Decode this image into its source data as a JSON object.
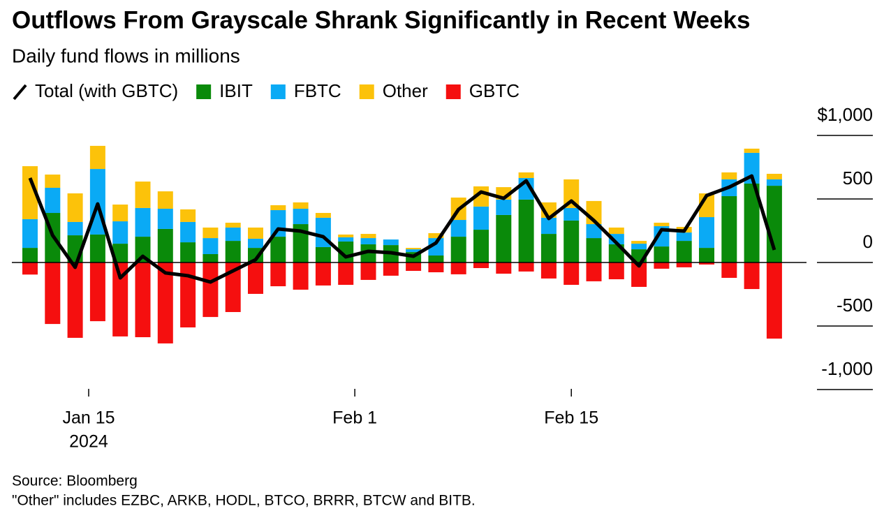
{
  "chart_data": {
    "type": "bar",
    "title": "Outflows From Grayscale Shrank Significantly in Recent Weeks",
    "subtitle": "Daily fund flows in millions",
    "source": "Source: Bloomberg",
    "note": "\"Other\" includes EZBC, ARKB, HODL, BTCO, BRRR, BTCW and BITB.",
    "categories": [
      null,
      null,
      null,
      null,
      null,
      null,
      null,
      null,
      null,
      null,
      null,
      null,
      null,
      null,
      null,
      null,
      null,
      null,
      null,
      null,
      null,
      null,
      null,
      null,
      null,
      null,
      null,
      null,
      null,
      null,
      null,
      null,
      null,
      null
    ],
    "xticks": [
      {
        "value": 2.6,
        "label": "Jan 15"
      },
      {
        "value": 14.4,
        "label": "Feb 1"
      },
      {
        "value": 24,
        "label": "Feb 15"
      }
    ],
    "x_year_label": "2024",
    "ylim": [
      -1000,
      1000
    ],
    "yticks": [
      {
        "value": 1000,
        "label": "$1,000"
      },
      500,
      0,
      -500,
      {
        "value": -1000,
        "label": "-1,000"
      }
    ],
    "series": [
      {
        "name": "Total (with GBTC)",
        "type": "line",
        "color": "#000000",
        "values": [
          665,
          214,
          -38,
          461,
          -121,
          49,
          -82,
          -104,
          -154,
          -66,
          22,
          264,
          247,
          203,
          44,
          88,
          77,
          49,
          154,
          418,
          555,
          505,
          643,
          346,
          484,
          330,
          154,
          -27,
          258,
          247,
          527,
          593,
          681,
          99
        ]
      },
      {
        "name": "IBIT",
        "type": "bar",
        "color": "#0a8a0a",
        "values": [
          115,
          390,
          214,
          220,
          148,
          203,
          264,
          159,
          66,
          170,
          115,
          203,
          302,
          121,
          165,
          143,
          137,
          82,
          55,
          203,
          258,
          374,
          495,
          225,
          330,
          192,
          143,
          104,
          126,
          170,
          115,
          522,
          621,
          604
        ]
      },
      {
        "name": "FBTC",
        "type": "bar",
        "color": "#0aaaf5",
        "values": [
          226,
          198,
          105,
          516,
          176,
          226,
          159,
          160,
          126,
          105,
          72,
          209,
          121,
          231,
          33,
          49,
          44,
          22,
          137,
          132,
          182,
          121,
          170,
          127,
          99,
          110,
          82,
          44,
          160,
          66,
          242,
          132,
          242,
          50
        ]
      },
      {
        "name": "Other",
        "type": "bar",
        "color": "#fcc20a",
        "values": [
          417,
          104,
          225,
          182,
          132,
          208,
          137,
          99,
          83,
          38,
          88,
          39,
          50,
          38,
          22,
          33,
          0,
          11,
          39,
          176,
          159,
          98,
          44,
          121,
          225,
          182,
          50,
          22,
          27,
          44,
          187,
          55,
          33,
          44
        ]
      },
      {
        "name": "GBTC",
        "type": "bar",
        "color": "#f50f0f",
        "values": [
          -95,
          -484,
          -593,
          -462,
          -582,
          -588,
          -637,
          -511,
          -429,
          -390,
          -247,
          -187,
          -214,
          -181,
          -176,
          -137,
          -104,
          -66,
          -77,
          -93,
          -44,
          -88,
          -71,
          -126,
          -176,
          -148,
          -132,
          -192,
          -49,
          -38,
          -16,
          -121,
          -209,
          -599
        ]
      }
    ]
  }
}
